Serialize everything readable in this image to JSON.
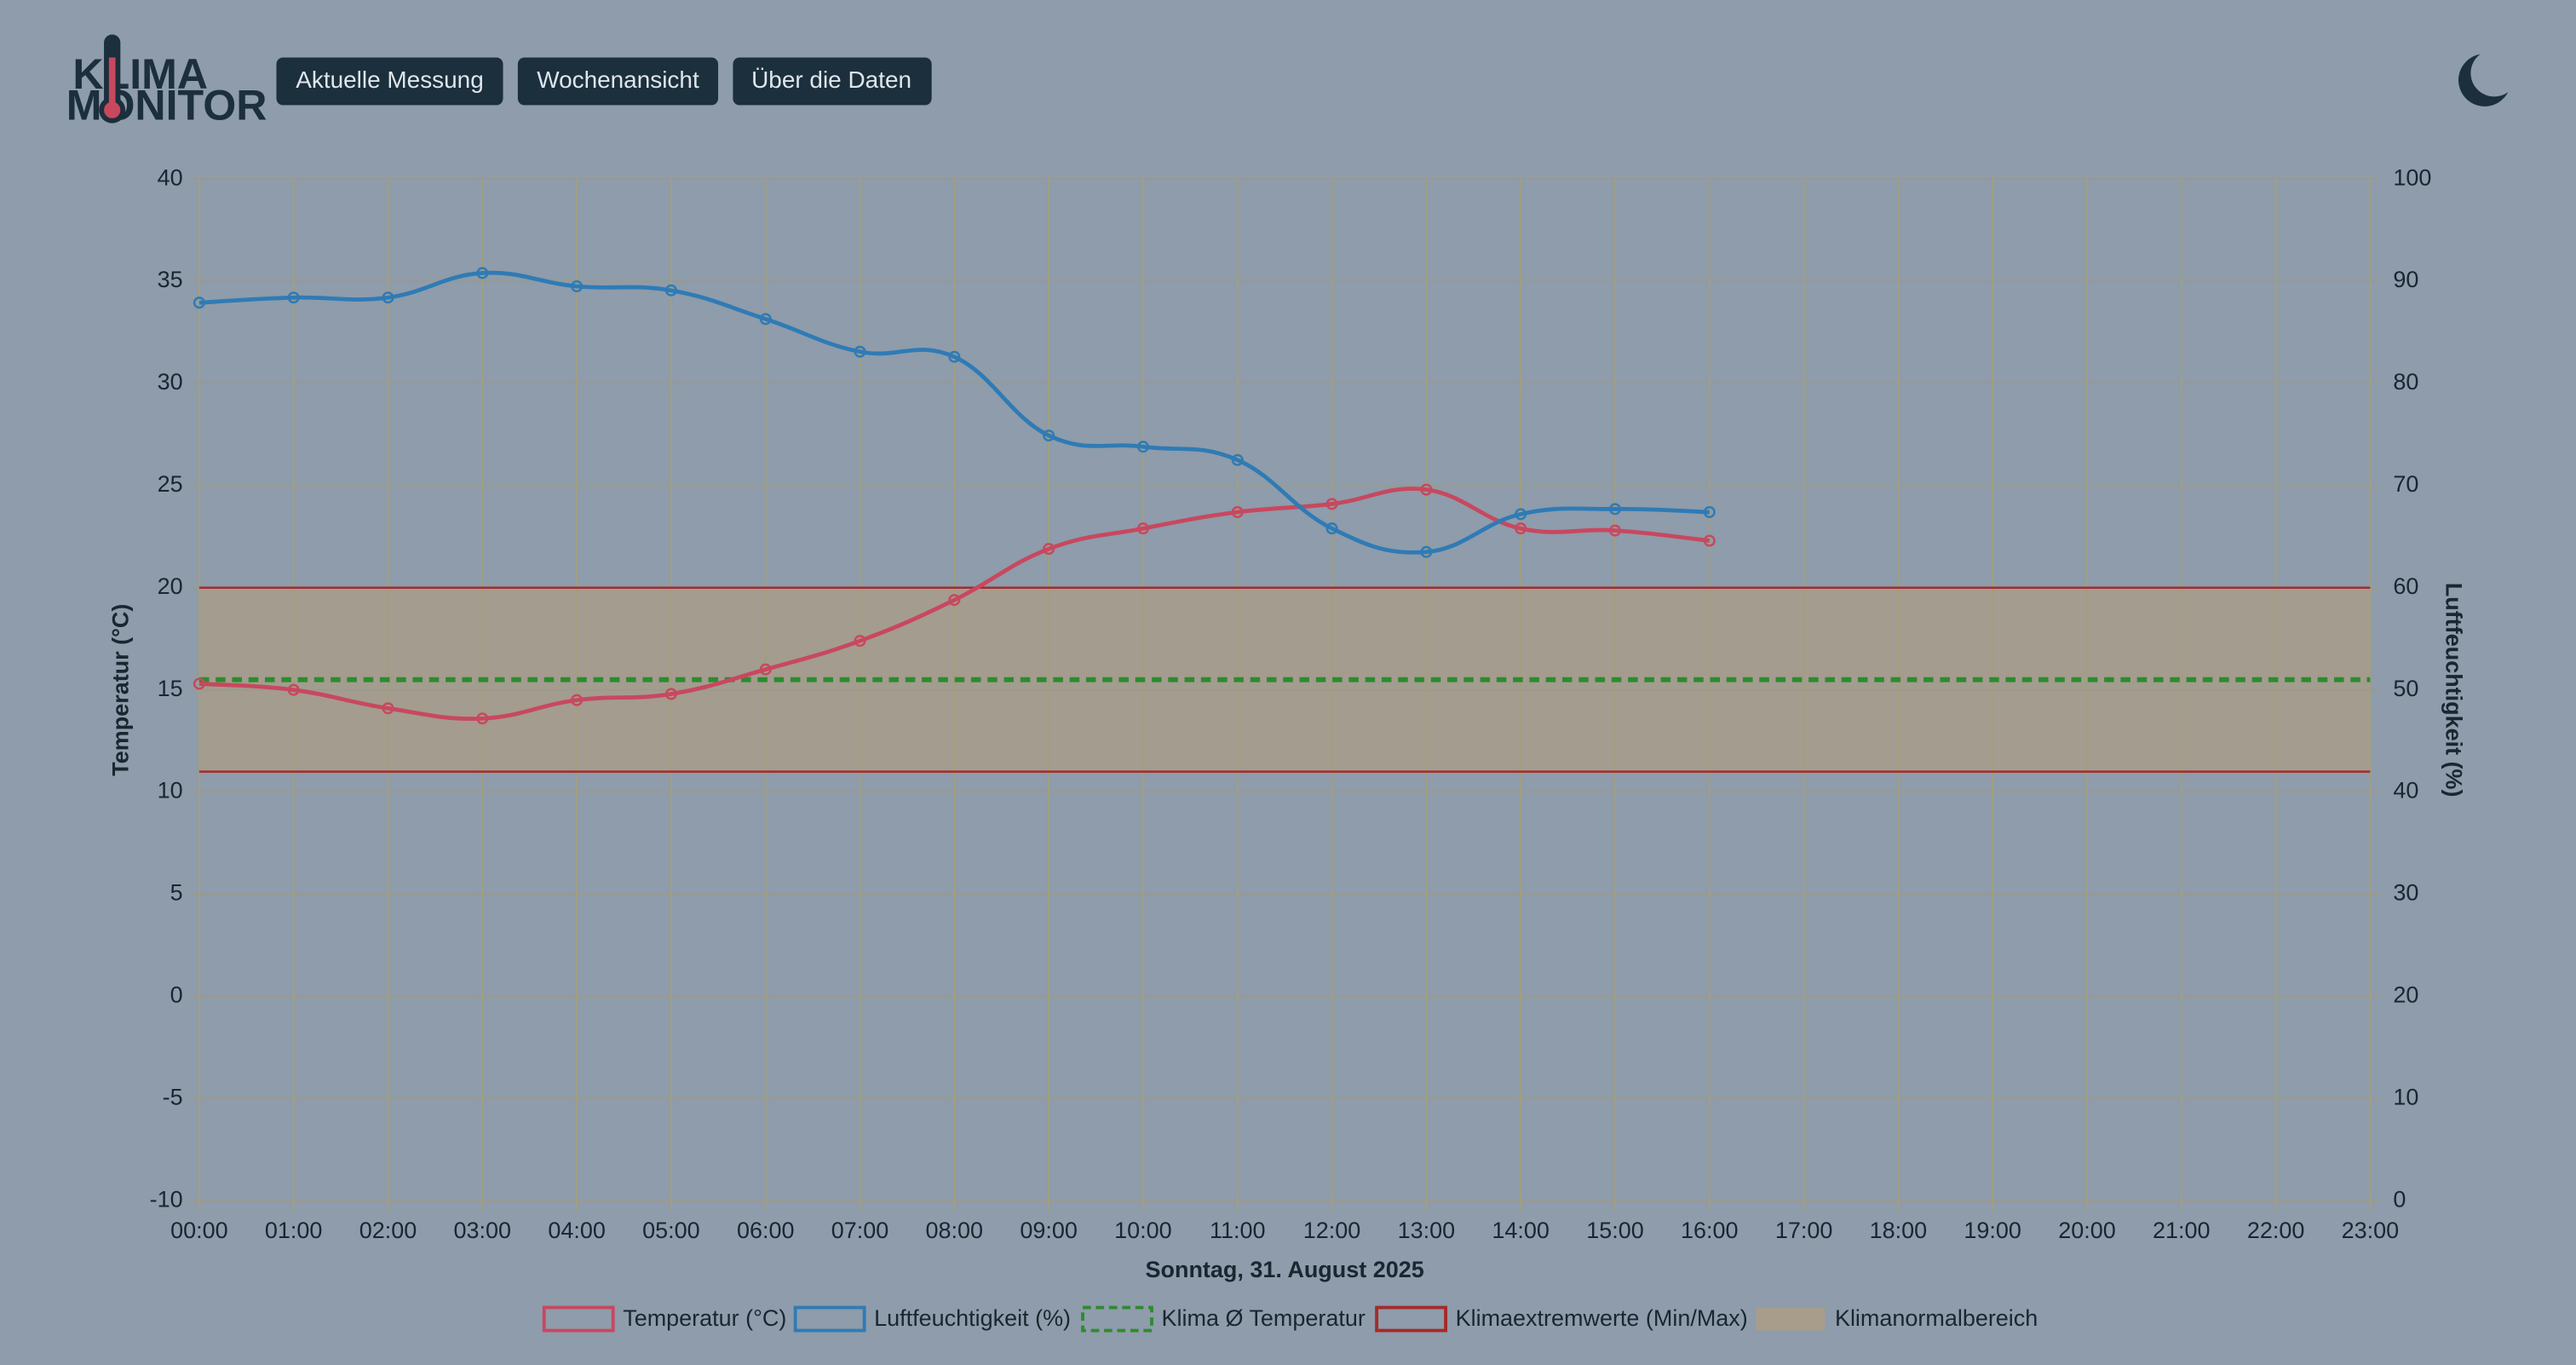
{
  "logo": [
    "KLIMA",
    "MONITOR"
  ],
  "nav": [
    "Aktuelle Messung",
    "Wochenansicht",
    "Über die Daten"
  ],
  "chart_data": {
    "type": "line",
    "xlabel": "Sonntag, 31. August 2025",
    "ylabel": "Temperatur (°C)",
    "y2label": "Luftfeuchtigkeit (%)",
    "categories": [
      "00:00",
      "01:00",
      "02:00",
      "03:00",
      "04:00",
      "05:00",
      "06:00",
      "07:00",
      "08:00",
      "09:00",
      "10:00",
      "11:00",
      "12:00",
      "13:00",
      "14:00",
      "15:00",
      "16:00",
      "17:00",
      "18:00",
      "19:00",
      "20:00",
      "21:00",
      "22:00",
      "23:00"
    ],
    "series": [
      {
        "name": "Temperatur (°C)",
        "color": "#c8485f",
        "values": [
          15.3,
          15.0,
          14.1,
          13.6,
          14.5,
          14.8,
          16.0,
          17.4,
          19.4,
          21.9,
          22.9,
          23.7,
          24.1,
          24.8,
          22.9,
          22.8,
          22.3,
          null,
          null,
          null,
          null,
          null,
          null,
          null
        ]
      },
      {
        "name": "Luftfeuchtigkeit (%)",
        "color": "#2f7bb5",
        "axis": "y2",
        "values": [
          87.9,
          88.4,
          88.4,
          90.8,
          89.5,
          89.1,
          86.3,
          83.1,
          82.6,
          74.9,
          73.8,
          72.5,
          65.8,
          63.5,
          67.2,
          67.7,
          67.4,
          null,
          null,
          null,
          null,
          null,
          null,
          null
        ]
      }
    ],
    "reference_line": {
      "name": "Klima Ø Temperatur",
      "value": 15.5,
      "color": "#2e8b2e"
    },
    "extremes": {
      "name": "Klimaextremwerte (Min/Max)",
      "color": "#a52a2a",
      "values": [
        11,
        20
      ]
    },
    "normal_range": {
      "name": "Klimanormalbereich",
      "color": "#a89c8a",
      "values": [
        11,
        20
      ]
    },
    "ylim": [
      -10,
      40
    ],
    "yticks": [
      -10,
      -5,
      0,
      5,
      10,
      15,
      20,
      25,
      30,
      35,
      40
    ],
    "y2lim": [
      0,
      100
    ],
    "y2ticks": [
      0,
      10,
      20,
      30,
      40,
      50,
      60,
      70,
      80,
      90,
      100
    ],
    "grid": true
  }
}
